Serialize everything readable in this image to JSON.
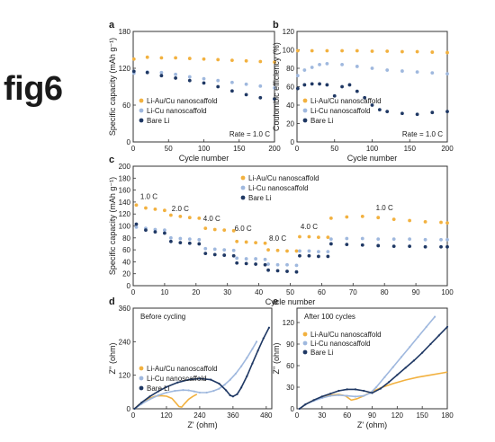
{
  "figure_label": "fig6",
  "colors": {
    "au": "#F2B13F",
    "cu": "#9FB8DE",
    "bare": "#1F3864",
    "axis": "#333333"
  },
  "legend_labels": {
    "au": "Li-Au/Cu nanoscaffold",
    "cu": "Li-Cu nanoscaffold",
    "bare": "Bare Li"
  },
  "chart_data": [
    {
      "id": "a",
      "panel_label": "a",
      "type": "scatter",
      "xlabel": "Cycle number",
      "ylabel": "Specific capacity (mAh g⁻¹)",
      "xlim": [
        0,
        200
      ],
      "ylim": [
        0,
        180
      ],
      "xticks": [
        0,
        50,
        100,
        150,
        200
      ],
      "yticks": [
        0,
        60,
        120,
        180
      ],
      "xtick_labels": [
        "0",
        "50",
        "100",
        "150",
        "200"
      ],
      "ytick_labels": [
        "0",
        "60",
        "120",
        "180"
      ],
      "annotation": "Rate = 1.0 C",
      "series": [
        {
          "name": "Li-Au/Cu nanoscaffold",
          "key": "au",
          "x": [
            1,
            20,
            40,
            60,
            80,
            100,
            120,
            140,
            160,
            180,
            200
          ],
          "y": [
            135,
            138,
            137,
            137,
            136,
            135,
            134,
            133,
            132,
            131,
            130
          ]
        },
        {
          "name": "Li-Cu nanoscaffold",
          "key": "cu",
          "x": [
            1,
            20,
            40,
            60,
            80,
            100,
            120,
            140,
            160,
            180,
            200
          ],
          "y": [
            112,
            114,
            113,
            110,
            106,
            103,
            100,
            97,
            94,
            91,
            88
          ]
        },
        {
          "name": "Bare Li",
          "key": "bare",
          "x": [
            1,
            20,
            40,
            60,
            80,
            100,
            120,
            140,
            160,
            180,
            200
          ],
          "y": [
            115,
            113,
            108,
            104,
            100,
            96,
            90,
            83,
            77,
            72,
            70
          ]
        }
      ]
    },
    {
      "id": "b",
      "panel_label": "b",
      "type": "scatter",
      "xlabel": "Cycle number",
      "ylabel": "Coulombic efficiency (%)",
      "xlim": [
        0,
        200
      ],
      "ylim": [
        0,
        120
      ],
      "xticks": [
        0,
        50,
        100,
        150,
        200
      ],
      "yticks": [
        0,
        20,
        40,
        60,
        80,
        100,
        120
      ],
      "xtick_labels": [
        "0",
        "50",
        "100",
        "150",
        "200"
      ],
      "ytick_labels": [
        "0",
        "20",
        "40",
        "60",
        "80",
        "100",
        "120"
      ],
      "annotation": "Rate = 1.0 C",
      "series": [
        {
          "name": "Li-Au/Cu nanoscaffold",
          "key": "au",
          "x": [
            1,
            20,
            40,
            60,
            80,
            100,
            120,
            140,
            160,
            180,
            200
          ],
          "y": [
            99,
            99,
            99,
            99,
            99,
            98.5,
            98.5,
            98,
            98,
            97.5,
            97
          ]
        },
        {
          "name": "Li-Cu nanoscaffold",
          "key": "cu",
          "x": [
            1,
            10,
            20,
            30,
            40,
            60,
            80,
            100,
            120,
            140,
            160,
            180,
            200
          ],
          "y": [
            72,
            78,
            81,
            84,
            85,
            84,
            82,
            80,
            78,
            77,
            76,
            75,
            74
          ]
        },
        {
          "name": "Bare Li",
          "key": "bare",
          "x": [
            1,
            10,
            20,
            30,
            40,
            50,
            60,
            70,
            80,
            90,
            100,
            110,
            120,
            140,
            160,
            180,
            200
          ],
          "y": [
            58,
            62,
            63,
            63,
            62,
            50,
            60,
            62,
            55,
            48,
            40,
            35,
            33,
            31,
            30,
            32,
            33
          ]
        }
      ]
    },
    {
      "id": "c",
      "panel_label": "c",
      "type": "scatter",
      "xlabel": "Cycle number",
      "ylabel": "Specific capacity (mAh g⁻¹)",
      "xlim": [
        0,
        100
      ],
      "ylim": [
        0,
        200
      ],
      "xticks": [
        0,
        10,
        20,
        30,
        40,
        50,
        60,
        70,
        80,
        90,
        100
      ],
      "yticks": [
        0,
        20,
        40,
        60,
        80,
        100,
        120,
        140,
        160,
        180,
        200
      ],
      "xtick_labels": [
        "0",
        "10",
        "20",
        "30",
        "40",
        "50",
        "60",
        "70",
        "80",
        "90",
        "100"
      ],
      "ytick_labels": [
        "0",
        "20",
        "40",
        "60",
        "80",
        "100",
        "120",
        "140",
        "160",
        "180",
        "200"
      ],
      "rate_labels": [
        {
          "text": "1.0 C",
          "x": 5,
          "y": 145
        },
        {
          "text": "2.0 C",
          "x": 15,
          "y": 125
        },
        {
          "text": "4.0 C",
          "x": 25,
          "y": 108
        },
        {
          "text": "6.0 C",
          "x": 35,
          "y": 92
        },
        {
          "text": "8.0 C",
          "x": 46,
          "y": 75
        },
        {
          "text": "4.0 C",
          "x": 56,
          "y": 95
        },
        {
          "text": "1.0 C",
          "x": 80,
          "y": 126
        }
      ],
      "series": [
        {
          "name": "Li-Au/Cu nanoscaffold",
          "key": "au",
          "x": [
            1,
            4,
            7,
            10,
            12,
            15,
            18,
            21,
            23,
            26,
            29,
            32,
            33,
            36,
            39,
            42,
            43,
            46,
            49,
            52,
            53,
            56,
            59,
            62,
            63,
            68,
            73,
            78,
            83,
            88,
            93,
            98,
            100
          ],
          "y": [
            135,
            130,
            128,
            126,
            118,
            116,
            114,
            113,
            96,
            94,
            93,
            92,
            74,
            73,
            72,
            71,
            60,
            59,
            58,
            58,
            82,
            82,
            81,
            81,
            113,
            115,
            116,
            114,
            111,
            109,
            107,
            106,
            105
          ]
        },
        {
          "name": "Li-Cu nanoscaffold",
          "key": "cu",
          "x": [
            1,
            4,
            7,
            10,
            12,
            15,
            18,
            21,
            23,
            26,
            29,
            32,
            33,
            36,
            39,
            42,
            43,
            46,
            49,
            52,
            53,
            56,
            59,
            62,
            63,
            68,
            73,
            78,
            83,
            88,
            93,
            98,
            100
          ],
          "y": [
            98,
            96,
            94,
            93,
            80,
            79,
            78,
            77,
            62,
            61,
            60,
            59,
            46,
            45,
            45,
            44,
            36,
            35,
            35,
            34,
            58,
            58,
            57,
            57,
            78,
            79,
            79,
            78,
            78,
            78,
            77,
            77,
            77
          ]
        },
        {
          "name": "Bare Li",
          "key": "bare",
          "x": [
            1,
            4,
            7,
            10,
            12,
            15,
            18,
            21,
            23,
            26,
            29,
            32,
            33,
            36,
            39,
            42,
            43,
            46,
            49,
            52,
            53,
            56,
            59,
            62,
            63,
            68,
            73,
            78,
            83,
            88,
            93,
            98,
            100
          ],
          "y": [
            103,
            93,
            90,
            88,
            74,
            72,
            71,
            70,
            54,
            52,
            51,
            50,
            38,
            37,
            36,
            35,
            26,
            25,
            24,
            23,
            50,
            50,
            49,
            49,
            70,
            69,
            68,
            67,
            66,
            66,
            65,
            65,
            65
          ]
        }
      ]
    },
    {
      "id": "d",
      "panel_label": "d",
      "type": "line",
      "title": "Before cycling",
      "xlabel": "Z' (ohm)",
      "ylabel": "Z'' (ohm)",
      "xlim": [
        0,
        500
      ],
      "ylim": [
        0,
        360
      ],
      "xticks": [
        0,
        120,
        240,
        360,
        480
      ],
      "yticks": [
        0,
        120,
        240,
        360
      ],
      "xtick_labels": [
        "0",
        "120",
        "240",
        "360",
        "480"
      ],
      "ytick_labels": [
        "0",
        "120",
        "240",
        "360"
      ],
      "series": [
        {
          "name": "Li-Au/Cu nanoscaffold",
          "key": "au",
          "x": [
            5,
            20,
            40,
            60,
            80,
            100,
            120,
            140,
            155,
            165,
            175,
            185,
            200,
            215,
            230
          ],
          "y": [
            0,
            14,
            28,
            38,
            45,
            47,
            45,
            37,
            20,
            8,
            6,
            18,
            34,
            44,
            52
          ]
        },
        {
          "name": "Li-Cu nanoscaffold",
          "key": "cu",
          "x": [
            5,
            30,
            60,
            90,
            120,
            150,
            180,
            200,
            220,
            240,
            265,
            290,
            310,
            330,
            350,
            370,
            390,
            410,
            430,
            445
          ],
          "y": [
            0,
            17,
            34,
            48,
            58,
            64,
            67,
            66,
            62,
            58,
            58,
            64,
            72,
            86,
            104,
            126,
            152,
            182,
            214,
            240
          ]
        },
        {
          "name": "Bare Li",
          "key": "bare",
          "x": [
            5,
            30,
            60,
            90,
            120,
            160,
            200,
            240,
            280,
            310,
            335,
            350,
            360,
            375,
            390,
            410,
            430,
            450,
            470,
            490
          ],
          "y": [
            0,
            22,
            44,
            62,
            78,
            94,
            104,
            108,
            104,
            90,
            66,
            48,
            44,
            52,
            76,
            116,
            162,
            208,
            252,
            290
          ]
        }
      ]
    },
    {
      "id": "e",
      "panel_label": "e",
      "type": "line",
      "title": "After 100 cycles",
      "xlabel": "Z' (ohm)",
      "ylabel": "Z'' (ohm)",
      "xlim": [
        0,
        180
      ],
      "ylim": [
        0,
        140
      ],
      "xticks": [
        0,
        30,
        60,
        90,
        120,
        150,
        180
      ],
      "yticks": [
        0,
        30,
        60,
        90,
        120
      ],
      "xtick_labels": [
        "0",
        "30",
        "60",
        "90",
        "120",
        "150",
        "180"
      ],
      "ytick_labels": [
        "0",
        "30",
        "60",
        "90",
        "120"
      ],
      "series": [
        {
          "name": "Li-Au/Cu nanoscaffold",
          "key": "au",
          "x": [
            3,
            10,
            20,
            30,
            40,
            50,
            58,
            65,
            72,
            80,
            90,
            100,
            115,
            130,
            145,
            160,
            175,
            180
          ],
          "y": [
            0,
            6,
            12,
            16,
            19,
            20,
            18,
            12,
            14,
            18,
            24,
            29,
            35,
            40,
            44,
            47,
            50,
            51
          ]
        },
        {
          "name": "Li-Cu nanoscaffold",
          "key": "cu",
          "x": [
            3,
            10,
            20,
            30,
            40,
            50,
            60,
            70,
            80,
            88,
            95,
            105,
            115,
            125,
            135,
            145,
            155,
            165
          ],
          "y": [
            0,
            6,
            11,
            15,
            18,
            19,
            18,
            17,
            18,
            22,
            30,
            44,
            58,
            72,
            86,
            100,
            114,
            128
          ]
        },
        {
          "name": "Bare Li",
          "key": "bare",
          "x": [
            3,
            10,
            20,
            30,
            40,
            50,
            60,
            70,
            80,
            90,
            100,
            110,
            120,
            130,
            140,
            150,
            160,
            170,
            180
          ],
          "y": [
            0,
            6,
            12,
            17,
            21,
            25,
            27,
            27,
            25,
            22,
            28,
            37,
            47,
            57,
            67,
            78,
            90,
            102,
            114
          ]
        }
      ]
    }
  ]
}
